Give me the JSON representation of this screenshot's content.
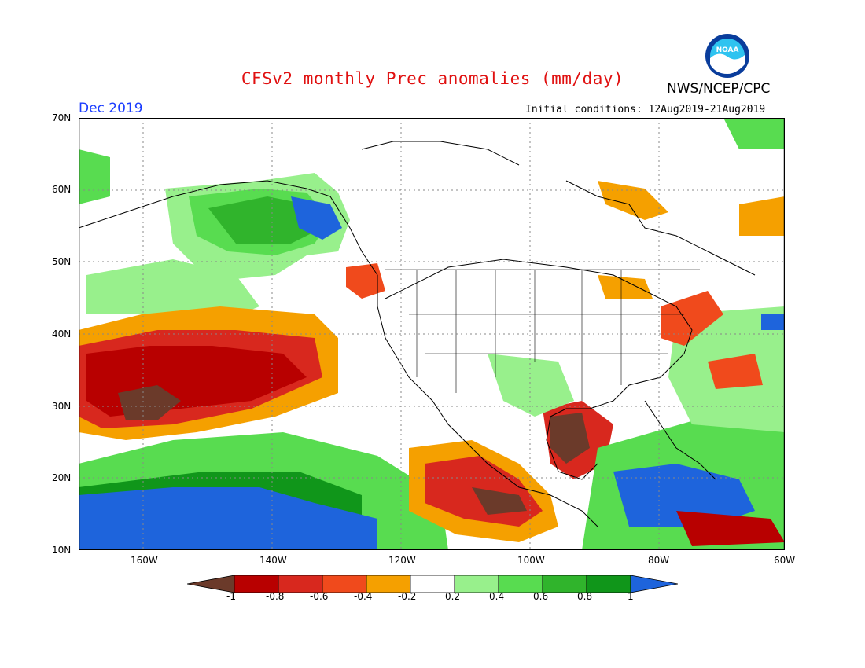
{
  "header": {
    "title": "CFSv2 monthly Prec anomalies (mm/day)",
    "agency": "NWS/NCEP/CPC",
    "logo_text": "NOAA",
    "period": "Dec 2019",
    "initial_conditions": "Initial conditions: 12Aug2019-21Aug2019"
  },
  "axes": {
    "lat_labels": [
      "70N",
      "60N",
      "50N",
      "40N",
      "30N",
      "20N",
      "10N"
    ],
    "lon_labels": [
      "160W",
      "140W",
      "120W",
      "100W",
      "80W",
      "60W"
    ]
  },
  "colorbar": {
    "labels": [
      "-1",
      "-0.8",
      "-0.6",
      "-0.4",
      "-0.2",
      "0.2",
      "0.4",
      "0.6",
      "0.8",
      "1"
    ],
    "colors": [
      "#6b3a2a",
      "#b80000",
      "#d8281e",
      "#f04a1c",
      "#f5a000",
      "#ffffff",
      "#98f08c",
      "#58dc50",
      "#30b42c",
      "#10961a",
      "#1e64dc"
    ]
  },
  "colors": {
    "brown": "#6b3a2a",
    "dark_red": "#b80000",
    "red": "#d8281e",
    "orange_red": "#f04a1c",
    "orange": "#f5a000",
    "light_green": "#98f08c",
    "green": "#58dc50",
    "mid_green": "#30b42c",
    "dark_green": "#10961a",
    "blue": "#1e64dc"
  }
}
